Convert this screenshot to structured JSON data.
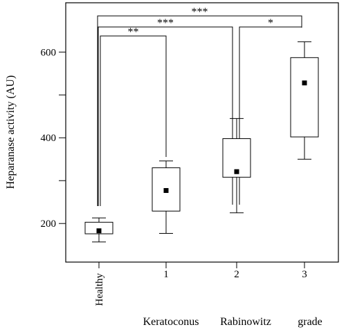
{
  "chart_data": {
    "type": "box",
    "title": "",
    "ylabel": "Heparanase activity (AU)",
    "xlabel_words": [
      "Keratoconus",
      "Rabinowitz",
      "grade"
    ],
    "ylim": [
      110,
      715
    ],
    "yticks": [
      200,
      400,
      600
    ],
    "ytick_labels": [
      "200",
      "400",
      "600"
    ],
    "minor_yticks": [
      300,
      500
    ],
    "categories": [
      "Healthy",
      "1",
      "2",
      "3"
    ],
    "boxes": [
      {
        "category": "Healthy",
        "whisker_low": 157,
        "q1": 176,
        "q3": 203,
        "whisker_high": 213,
        "mean": 183
      },
      {
        "category": "1",
        "whisker_low": 177,
        "q1": 229,
        "q3": 330,
        "whisker_high": 346,
        "mean": 277
      },
      {
        "category": "2",
        "whisker_low": 225,
        "q1": 308,
        "q3": 398,
        "whisker_high": 445,
        "mean": 321
      },
      {
        "category": "3",
        "whisker_low": 350,
        "q1": 402,
        "q3": 587,
        "whisker_high": 624,
        "mean": 528
      }
    ],
    "significance": [
      {
        "from": "Healthy",
        "to": "1",
        "label": "**"
      },
      {
        "from": "Healthy",
        "to": "2",
        "label": "***"
      },
      {
        "from": "Healthy",
        "to": "3",
        "label": "***"
      },
      {
        "from": "2",
        "to": "3",
        "label": "*"
      }
    ],
    "grid": false,
    "legend": "none"
  }
}
